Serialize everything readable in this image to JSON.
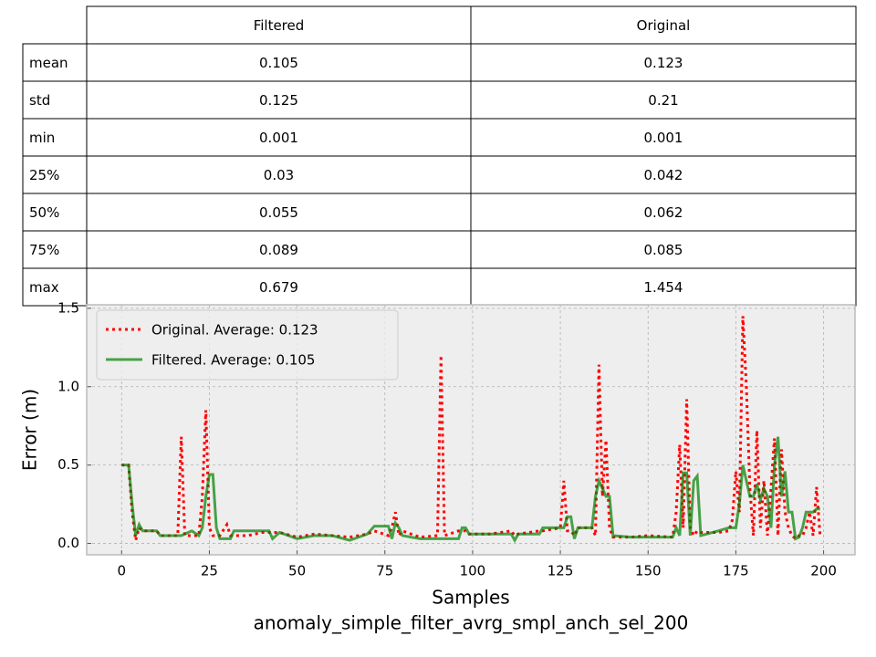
{
  "table": {
    "columns": [
      "Filtered",
      "Original"
    ],
    "rows": [
      {
        "label": "mean",
        "cells": [
          0.105,
          0.123
        ]
      },
      {
        "label": "std",
        "cells": [
          0.125,
          0.21
        ]
      },
      {
        "label": "min",
        "cells": [
          0.001,
          0.001
        ]
      },
      {
        "label": "25%",
        "cells": [
          0.03,
          0.042
        ]
      },
      {
        "label": "50%",
        "cells": [
          0.055,
          0.062
        ]
      },
      {
        "label": "75%",
        "cells": [
          0.089,
          0.085
        ]
      },
      {
        "label": "max",
        "cells": [
          0.679,
          1.454
        ]
      }
    ]
  },
  "chart_data": {
    "type": "line",
    "xlabel_lines": [
      "Samples",
      "anomaly_simple_filter_avrg_smpl_anch_sel_200"
    ],
    "ylabel": "Error (m)",
    "xlim": [
      -9.95,
      208.95
    ],
    "xticks": [
      0,
      25,
      50,
      75,
      100,
      125,
      150,
      175,
      200
    ],
    "ylim": [
      -0.0725,
      1.5225
    ],
    "yticks": [
      {
        "value": 0,
        "label": "0.0"
      },
      0.5,
      {
        "value": 1,
        "label": "1.0"
      },
      1.5
    ],
    "grid": true,
    "legend": "upper left",
    "x": [
      0,
      2,
      3,
      4,
      5,
      6,
      10,
      11,
      16,
      17,
      18,
      20,
      22,
      23,
      24,
      25,
      26,
      27,
      28,
      30,
      31,
      32,
      36,
      40,
      42,
      43,
      45,
      50,
      55,
      60,
      65,
      70,
      72,
      76,
      77,
      78,
      79,
      80,
      85,
      90,
      91,
      92,
      96,
      97,
      98,
      99,
      105,
      111,
      112,
      113,
      119,
      120,
      125,
      126,
      127,
      128,
      129,
      130,
      134,
      135,
      136,
      137,
      138,
      139,
      140,
      145,
      150,
      157,
      158,
      159,
      160,
      161,
      162,
      163,
      164,
      165,
      170,
      173,
      174,
      175,
      176,
      177,
      178,
      179,
      180,
      181,
      182,
      183,
      184,
      185,
      186,
      187,
      188,
      189,
      190,
      191,
      192,
      193,
      194,
      195,
      196,
      197,
      198,
      199
    ],
    "series": [
      {
        "name": "Original. Average: 0.123",
        "color": "#ff0000",
        "linestyle": "dotted",
        "alpha": 1,
        "values": [
          0.5,
          0.5,
          0.2,
          0.02,
          0.1,
          0.08,
          0.08,
          0.05,
          0.05,
          0.68,
          0.05,
          0.05,
          0.05,
          0.3,
          0.85,
          0.1,
          0.05,
          0.05,
          0.05,
          0.12,
          0.05,
          0.05,
          0.05,
          0.07,
          0.07,
          0.07,
          0.07,
          0.04,
          0.06,
          0.05,
          0.04,
          0.06,
          0.08,
          0.05,
          0.1,
          0.2,
          0.05,
          0.08,
          0.04,
          0.05,
          1.2,
          0.05,
          0.08,
          0.08,
          0.08,
          0.06,
          0.06,
          0.08,
          0.05,
          0.06,
          0.08,
          0.08,
          0.1,
          0.4,
          0.08,
          0.08,
          0.05,
          0.1,
          0.1,
          0.05,
          1.14,
          0.3,
          0.66,
          0.1,
          0.04,
          0.04,
          0.05,
          0.04,
          0.2,
          0.63,
          0.1,
          0.92,
          0.1,
          0.05,
          0.08,
          0.07,
          0.07,
          0.08,
          0.15,
          0.46,
          0.2,
          1.45,
          1.0,
          0.35,
          0.05,
          0.72,
          0.1,
          0.4,
          0.05,
          0.35,
          0.67,
          0.05,
          0.6,
          0.2,
          0.1,
          0.05,
          0.03,
          0.05,
          0.05,
          0.1,
          0.2,
          0.05,
          0.36,
          0.05
        ]
      },
      {
        "name": "Filtered. Average: 0.105",
        "color": "#008000",
        "linestyle": "solid",
        "alpha": 0.7,
        "values": [
          0.5,
          0.5,
          0.25,
          0.05,
          0.12,
          0.08,
          0.08,
          0.05,
          0.05,
          0.05,
          0.06,
          0.08,
          0.05,
          0.1,
          0.3,
          0.44,
          0.44,
          0.1,
          0.03,
          0.03,
          0.03,
          0.08,
          0.08,
          0.08,
          0.08,
          0.03,
          0.07,
          0.03,
          0.05,
          0.05,
          0.02,
          0.06,
          0.11,
          0.11,
          0.03,
          0.13,
          0.1,
          0.05,
          0.03,
          0.03,
          0.03,
          0.03,
          0.03,
          0.1,
          0.1,
          0.06,
          0.06,
          0.06,
          0.02,
          0.06,
          0.06,
          0.1,
          0.1,
          0.1,
          0.17,
          0.17,
          0.03,
          0.1,
          0.1,
          0.3,
          0.4,
          0.35,
          0.3,
          0.3,
          0.05,
          0.04,
          0.04,
          0.04,
          0.1,
          0.05,
          0.45,
          0.45,
          0.05,
          0.4,
          0.43,
          0.05,
          0.08,
          0.1,
          0.1,
          0.1,
          0.25,
          0.5,
          0.4,
          0.3,
          0.3,
          0.38,
          0.28,
          0.35,
          0.3,
          0.1,
          0.5,
          0.68,
          0.3,
          0.46,
          0.2,
          0.2,
          0.03,
          0.04,
          0.1,
          0.2,
          0.2,
          0.2,
          0.22,
          0.22
        ]
      }
    ]
  }
}
